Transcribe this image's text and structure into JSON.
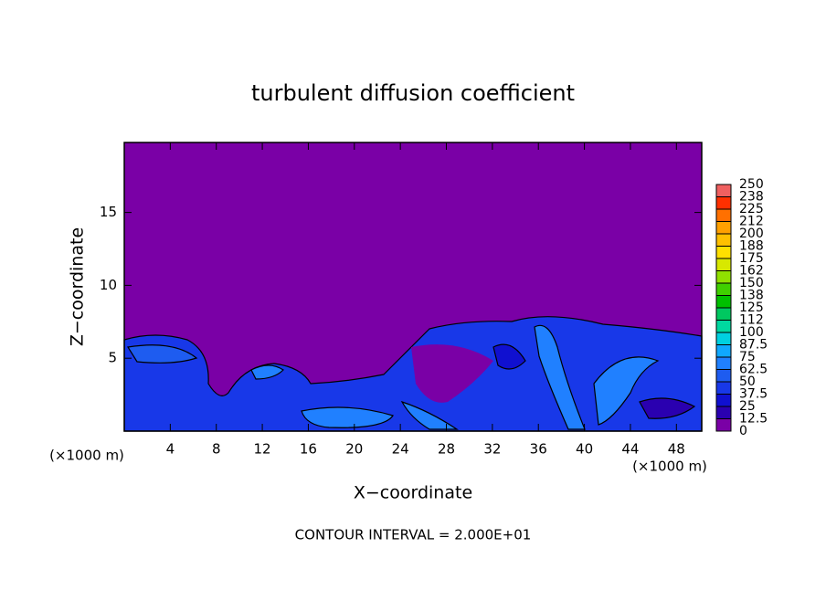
{
  "chart_data": {
    "type": "contour",
    "title": "turbulent diffusion coefficient",
    "xlabel": "X−coordinate",
    "ylabel": "Z−coordinate",
    "x_unit": "(×1000 m)",
    "x_unit_right": "(×1000 m)",
    "footer": "CONTOUR INTERVAL = 2.000E+01",
    "xlim": [
      0,
      50.2
    ],
    "xticks": [
      4,
      8,
      12,
      16,
      20,
      24,
      28,
      32,
      36,
      40,
      44,
      48
    ],
    "ylim": [
      0,
      19.8
    ],
    "yticks": [
      5,
      10,
      15
    ],
    "colorbar": {
      "ticks": [
        0,
        12.5,
        25,
        37.5,
        50,
        62.5,
        75,
        87.5,
        100,
        112,
        125,
        138,
        150,
        162,
        175,
        188,
        200,
        212,
        225,
        238,
        250
      ],
      "colors": [
        "#7a00a6",
        "#2a00b0",
        "#1010d0",
        "#1838e8",
        "#1e5cf0",
        "#2080ff",
        "#10a8ff",
        "#00d0e0",
        "#00d8a0",
        "#00c860",
        "#00c000",
        "#40d000",
        "#90e000",
        "#d8e800",
        "#ffe000",
        "#ffc000",
        "#ffa000",
        "#ff7000",
        "#ff3000",
        "#f06060"
      ]
    }
  }
}
